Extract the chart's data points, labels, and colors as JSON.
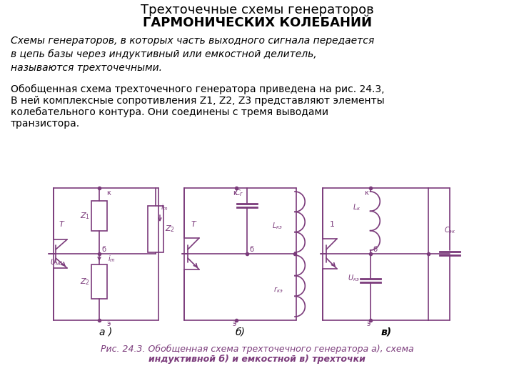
{
  "title_line1": "Трехточечные схемы генераторов",
  "title_line2": "ГАРМОНИЧЕСКИХ КОЛЕБАНИЙ",
  "para1_italic": "Схемы генераторов, в которых часть выходного сигнала передается\nв цепь базы через индуктивный или емкостной делитель,\nназываются трехточечными.",
  "para2_line1": "Обобщенная схема трехточечного генератора приведена на рис. 24.3, ",
  "para2_italic_a": "а",
  "para2_line2": "В ней комплексные сопротивления Z1, Z2, Z3 представляют элементы",
  "para2_line3": "колебательного контура. Они соединены с тремя выводами",
  "para2_line4": "транзистора.",
  "caption_line1": "Рис. 24.3. Обобщенная схема трехточечного генератора а), схема",
  "caption_line2": "индуктивной б) и емкостной в) трехточки",
  "circuit_color": "#7B3B7B",
  "bg_color": "#FFFFFF",
  "text_color": "#000000",
  "caption_color": "#7B3B7B"
}
